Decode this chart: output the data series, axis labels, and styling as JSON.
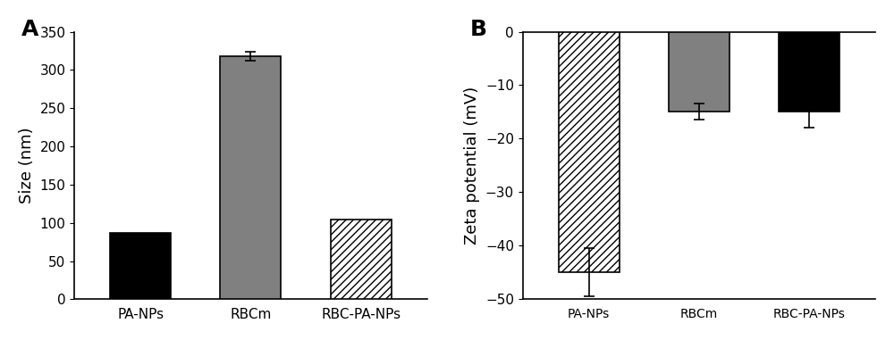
{
  "chart_A": {
    "categories": [
      "PA-NPs",
      "RBCm",
      "RBC-PA-NPs"
    ],
    "values": [
      87,
      318,
      104
    ],
    "errors": [
      0,
      6,
      0
    ],
    "colors": [
      "#000000",
      "#808080",
      "#ffffff"
    ],
    "hatches": [
      null,
      null,
      "////"
    ],
    "ylabel": "Size (nm)",
    "ylim": [
      0,
      350
    ],
    "yticks": [
      0,
      50,
      100,
      150,
      200,
      250,
      300,
      350
    ],
    "label": "A"
  },
  "chart_B": {
    "categories": [
      "PA-NPs",
      "RBCm",
      "RBC-PA-NPs"
    ],
    "values": [
      -45,
      -15,
      -15
    ],
    "errors": [
      4.5,
      1.5,
      3.0
    ],
    "colors": [
      "#ffffff",
      "#808080",
      "#000000"
    ],
    "hatches": [
      "////",
      null,
      null
    ],
    "ylabel": "Zeta potential (mV)",
    "ylim": [
      -50,
      0
    ],
    "yticks": [
      -50,
      -40,
      -30,
      -20,
      -10,
      0
    ],
    "label": "B"
  },
  "bar_width": 0.55,
  "tick_fontsize": 11,
  "label_fontsize": 13,
  "panel_label_fontsize": 18,
  "edgecolor": "#000000"
}
